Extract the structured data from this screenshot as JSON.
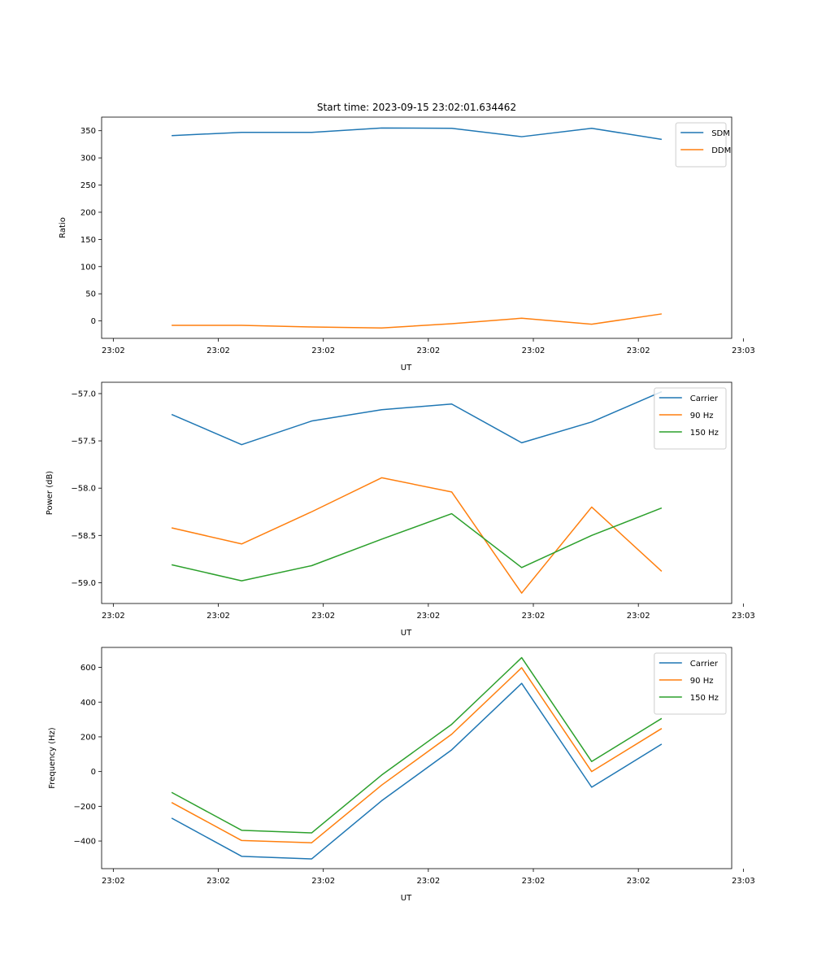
{
  "chart_data": [
    {
      "type": "line",
      "title": "Start time: 2023-09-15 23:02:01.634462",
      "xlabel": "UT",
      "ylabel": "Ratio",
      "x": [
        0.5,
        1.1,
        1.7,
        2.3,
        2.9,
        3.5,
        4.1,
        4.7
      ],
      "xlim": [
        -0.1,
        5.3
      ],
      "ylim": [
        -32,
        375
      ],
      "x_ticks": [
        0,
        0.9,
        1.8,
        2.7,
        3.6,
        4.5,
        5.4
      ],
      "x_tick_labels": [
        "23:02",
        "23:02",
        "23:02",
        "23:02",
        "23:02",
        "23:02",
        "23:03"
      ],
      "y_ticks": [
        0,
        50,
        100,
        150,
        200,
        250,
        300,
        350
      ],
      "y_tick_labels": [
        "0",
        "50",
        "100",
        "150",
        "200",
        "250",
        "300",
        "350"
      ],
      "legend_position": "top-right",
      "series": [
        {
          "name": "SDM",
          "color": "#1f77b4",
          "values": [
            341,
            347,
            347,
            355,
            354.5,
            339,
            354.5,
            334
          ]
        },
        {
          "name": "DDM",
          "color": "#ff7f0e",
          "values": [
            -8,
            -8,
            -11,
            -13,
            -5,
            5,
            -6,
            13
          ]
        }
      ]
    },
    {
      "type": "line",
      "xlabel": "UT",
      "ylabel": "Power (dB)",
      "x": [
        0.5,
        1.1,
        1.7,
        2.3,
        2.9,
        3.5,
        4.1,
        4.7
      ],
      "xlim": [
        -0.1,
        5.3
      ],
      "ylim": [
        -59.22,
        -56.88
      ],
      "x_ticks": [
        0,
        0.9,
        1.8,
        2.7,
        3.6,
        4.5,
        5.4
      ],
      "x_tick_labels": [
        "23:02",
        "23:02",
        "23:02",
        "23:02",
        "23:02",
        "23:02",
        "23:03"
      ],
      "y_ticks": [
        -59.0,
        -58.5,
        -58.0,
        -57.5,
        -57.0
      ],
      "y_tick_labels": [
        "−59.0",
        "−58.5",
        "−58.0",
        "−57.5",
        "−57.0"
      ],
      "legend_position": "top-right",
      "series": [
        {
          "name": "Carrier",
          "color": "#1f77b4",
          "values": [
            -57.22,
            -57.54,
            -57.29,
            -57.17,
            -57.11,
            -57.52,
            -57.3,
            -56.98
          ]
        },
        {
          "name": "90 Hz",
          "color": "#ff7f0e",
          "values": [
            -58.42,
            -58.59,
            -58.25,
            -57.89,
            -58.04,
            -59.11,
            -58.2,
            -58.88
          ]
        },
        {
          "name": "150 Hz",
          "color": "#2ca02c",
          "values": [
            -58.81,
            -58.98,
            -58.82,
            -58.54,
            -58.27,
            -58.84,
            -58.5,
            -58.21
          ]
        }
      ]
    },
    {
      "type": "line",
      "xlabel": "UT",
      "ylabel": "Frequency (Hz)",
      "x": [
        0.5,
        1.1,
        1.7,
        2.3,
        2.9,
        3.5,
        4.1,
        4.7
      ],
      "xlim": [
        -0.1,
        5.3
      ],
      "ylim": [
        -559,
        715
      ],
      "x_ticks": [
        0,
        0.9,
        1.8,
        2.7,
        3.6,
        4.5,
        5.4
      ],
      "x_tick_labels": [
        "23:02",
        "23:02",
        "23:02",
        "23:02",
        "23:02",
        "23:02",
        "23:03"
      ],
      "y_ticks": [
        -400,
        -200,
        0,
        200,
        400,
        600
      ],
      "y_tick_labels": [
        "−400",
        "−200",
        "0",
        "200",
        "400",
        "600"
      ],
      "legend_position": "top-right",
      "series": [
        {
          "name": "Carrier",
          "color": "#1f77b4",
          "values": [
            -268,
            -488,
            -503,
            -168,
            125,
            508,
            -90,
            158
          ]
        },
        {
          "name": "90 Hz",
          "color": "#ff7f0e",
          "values": [
            -178,
            -397,
            -410,
            -78,
            215,
            598,
            0,
            248
          ]
        },
        {
          "name": "150 Hz",
          "color": "#2ca02c",
          "values": [
            -120,
            -338,
            -353,
            -20,
            272,
            656,
            58,
            306
          ]
        }
      ]
    }
  ]
}
